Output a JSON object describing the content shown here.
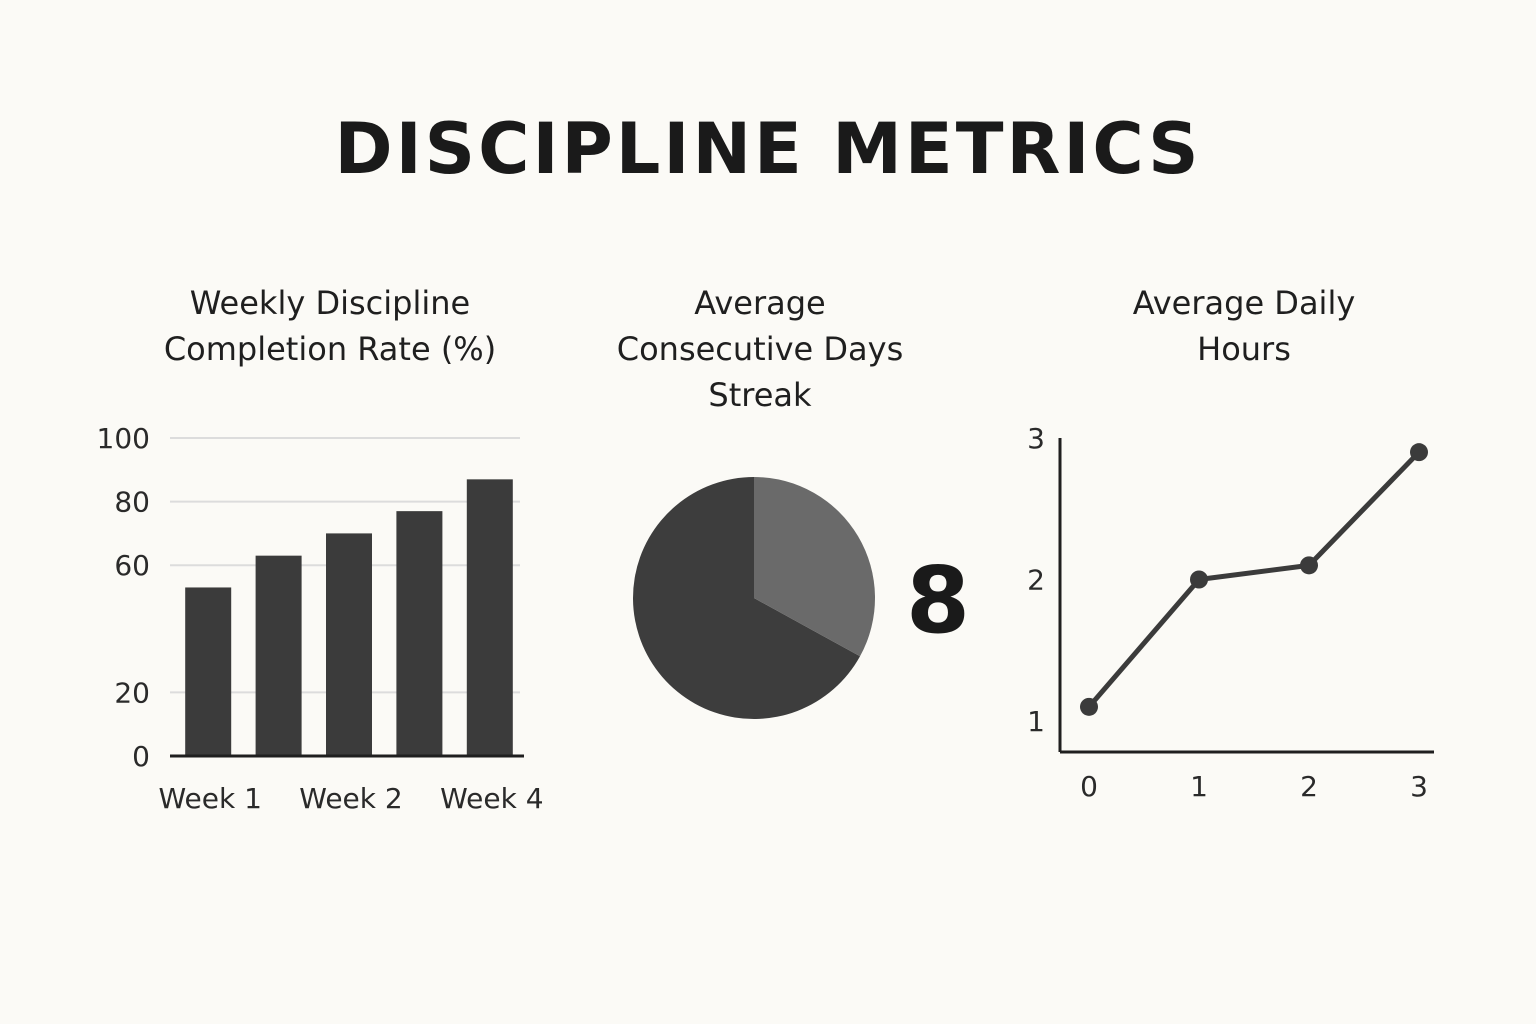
{
  "title": "DISCIPLINE METRICS",
  "colors": {
    "background": "#fbfaf6",
    "bar": "#3b3b3b",
    "pie_main": "#3d3d3d",
    "pie_slice": "#6a6a6a",
    "line": "#3b3b3b",
    "grid": "#dcdcdc",
    "axis": "#1f1f1f"
  },
  "chart_data": [
    {
      "type": "bar",
      "title_lines": [
        "Weekly Discipline",
        "Completion Rate (%)"
      ],
      "categories": [
        "Week 1",
        "",
        "Week 2",
        "",
        "Week 4"
      ],
      "values": [
        53,
        63,
        70,
        77,
        87
      ],
      "yticks": [
        0,
        20,
        60,
        80,
        100
      ],
      "ylim": [
        0,
        100
      ],
      "grid": true
    },
    {
      "type": "pie",
      "title_lines": [
        "Average",
        "Consecutive Days",
        "Streak"
      ],
      "slices": [
        {
          "label": "",
          "value": 67
        },
        {
          "label": "",
          "value": 33
        }
      ],
      "big_number": "8"
    },
    {
      "type": "line",
      "title_lines": [
        "Average Daily",
        "Hours"
      ],
      "x": [
        0,
        1,
        2,
        3
      ],
      "values": [
        1.1,
        2.0,
        2.1,
        2.9
      ],
      "xticks": [
        0,
        1,
        2,
        3
      ],
      "yticks": [
        1,
        2,
        3
      ],
      "grid": false
    }
  ]
}
